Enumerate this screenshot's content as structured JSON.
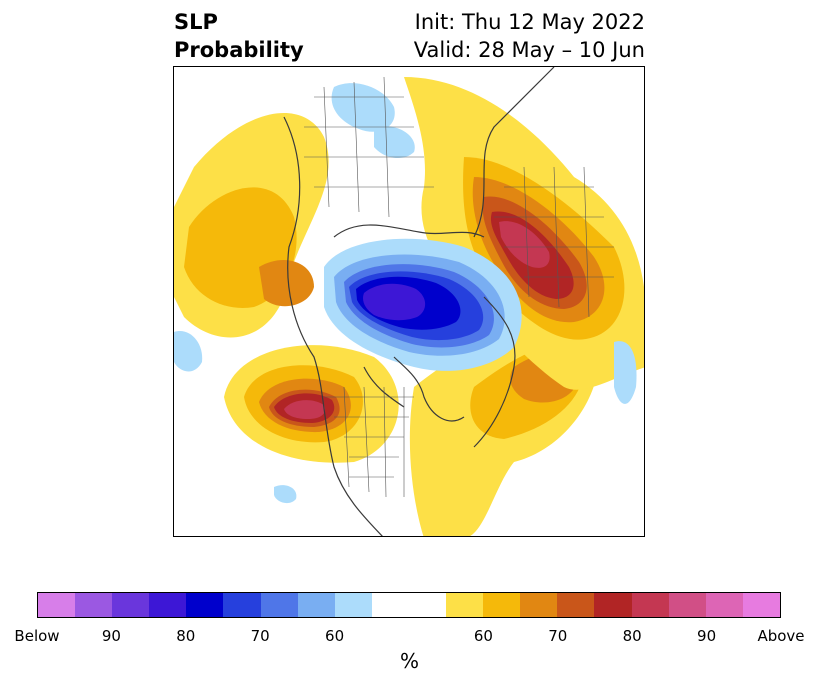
{
  "title": {
    "left_line1": "SLP",
    "left_line2": "Probability",
    "right_line1": "Init: Thu 12 May 2022",
    "right_line2": "Valid: 28 May – 10 Jun"
  },
  "colorbar": {
    "colors": [
      "#d77ee9",
      "#9b58e2",
      "#6a36dc",
      "#3d17d6",
      "#0000cc",
      "#2640dd",
      "#4f76e8",
      "#79aef2",
      "#acdcfb",
      "#ffffff",
      "#ffffff",
      "#fde047",
      "#f5b90a",
      "#e18712",
      "#c9561a",
      "#b12525",
      "#c43752",
      "#d14f86",
      "#dd65b5",
      "#e77be0"
    ],
    "ticks": [
      {
        "label": "Below"
      },
      {
        "label": "90"
      },
      {
        "label": "80"
      },
      {
        "label": "70"
      },
      {
        "label": "60"
      },
      {
        "label": "60"
      },
      {
        "label": "70"
      },
      {
        "label": "80"
      },
      {
        "label": "90"
      },
      {
        "label": "Above"
      }
    ],
    "units": "%"
  },
  "map": {
    "projection": "north-polar-stereographic",
    "features": [
      "low-pressure-anomaly-arctic",
      "high-pressure-anomaly-siberia",
      "high-pressure-anomaly-gulf-of-alaska",
      "high-pressure-anomaly-north-atlantic"
    ]
  }
}
